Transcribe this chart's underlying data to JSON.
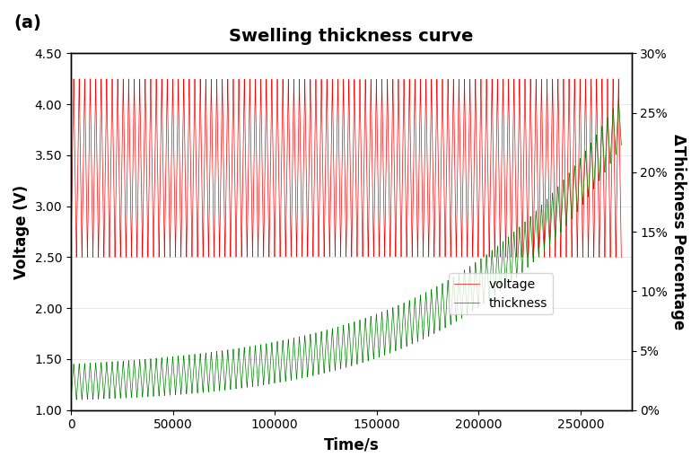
{
  "title": "Swelling thickness curve",
  "panel_label": "(a)",
  "xlabel": "Time/s",
  "ylabel_left": "Voltage (V)",
  "ylabel_right": "ΔThickness Percentage",
  "xlim": [
    0,
    275000
  ],
  "ylim_left": [
    1.0,
    4.5
  ],
  "ylim_right": [
    0.0,
    0.3
  ],
  "x_ticks": [
    0,
    50000,
    100000,
    150000,
    200000,
    250000
  ],
  "y_ticks_left": [
    1.0,
    1.5,
    2.0,
    2.5,
    3.0,
    3.5,
    4.0,
    4.5
  ],
  "y_ticks_right": [
    0.0,
    0.05,
    0.1,
    0.15,
    0.2,
    0.25,
    0.3
  ],
  "num_cycles": 100,
  "total_time": 270000,
  "voltage_max": 4.25,
  "voltage_min": 2.5,
  "voltage_color": "#FF0000",
  "thickness_color": "#008000",
  "legend_voltage": "voltage",
  "legend_thickness": "thickness",
  "title_fontsize": 14,
  "axis_label_fontsize": 12,
  "tick_fontsize": 10,
  "figsize": [
    7.8,
    5.19
  ],
  "dpi": 100
}
